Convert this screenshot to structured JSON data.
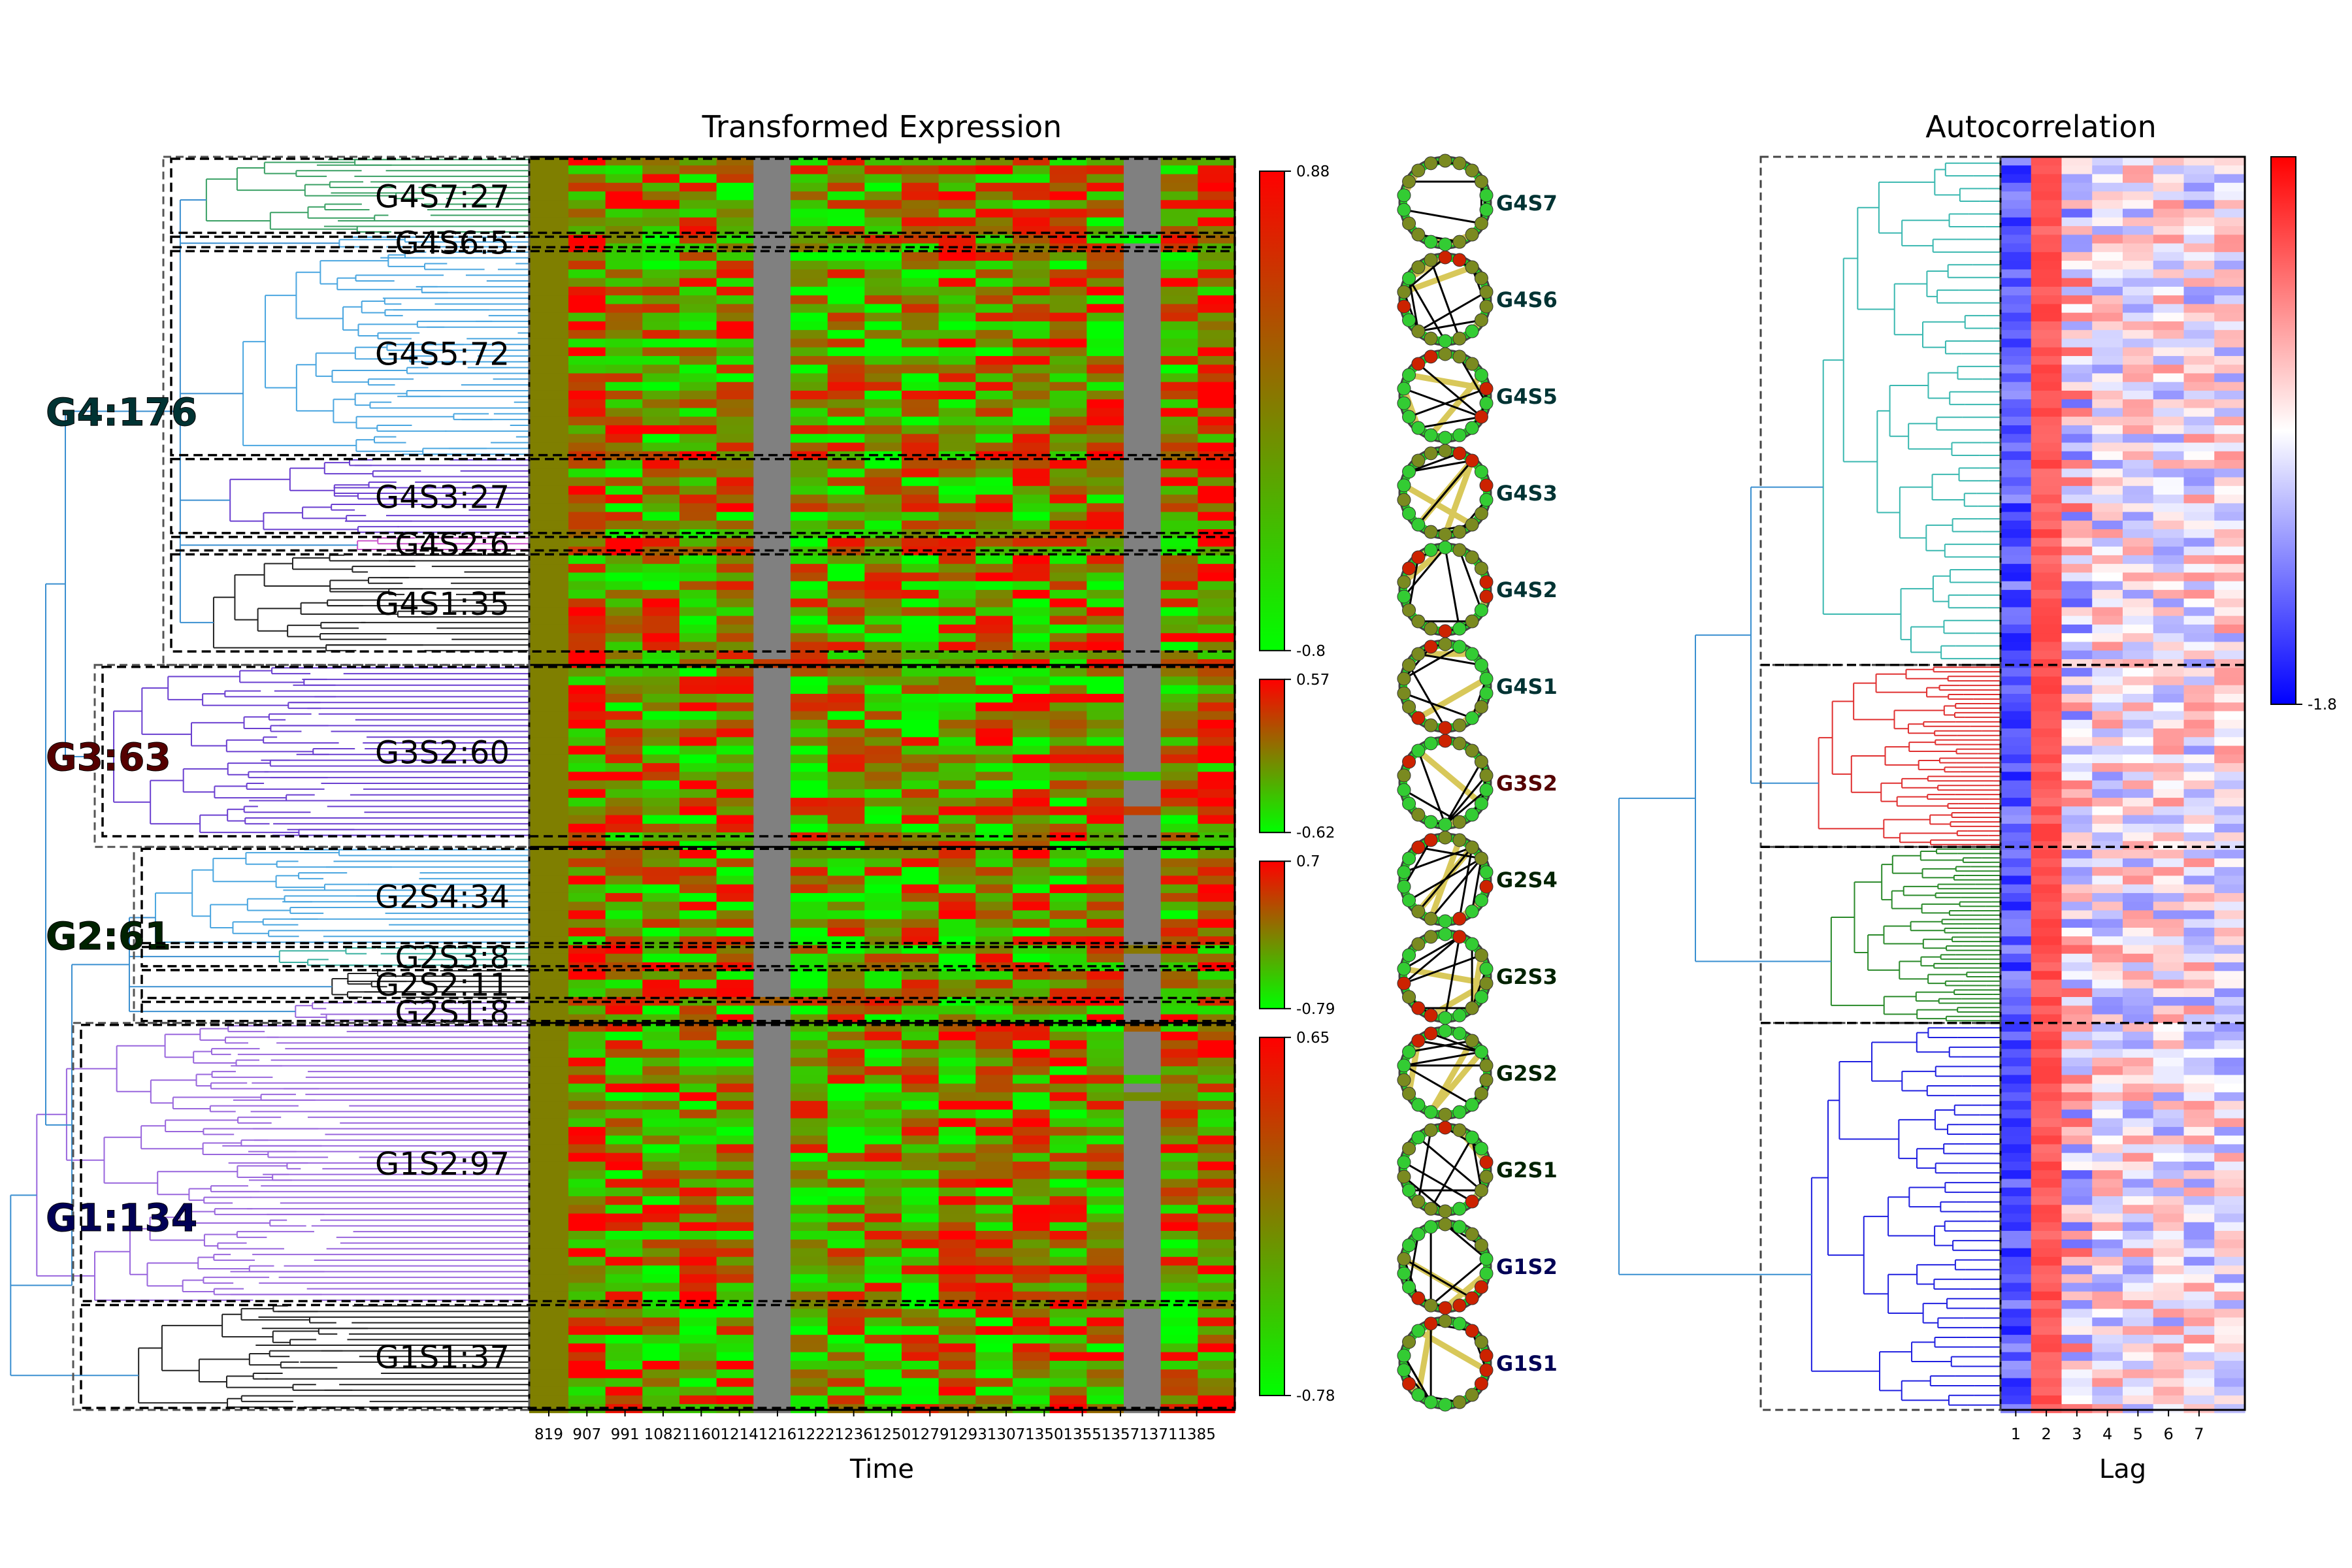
{
  "chart_data": [
    {
      "type": "heatmap",
      "title": "Transformed Expression",
      "xlabel": "Time",
      "x_tick_labels": [
        "819",
        "907",
        "991",
        "1082",
        "1160",
        "1214",
        "1216",
        "1222",
        "1236",
        "1250",
        "1279",
        "1293",
        "1307",
        "1350",
        "1355",
        "1357",
        "1371",
        "1385"
      ],
      "row_count": 434,
      "grid": false,
      "colormap": [
        "#00ff00",
        "#808000",
        "#ff0000"
      ],
      "groups": [
        {
          "label": "G4:176",
          "rows": 176,
          "color": "#003333",
          "subgroups": [
            {
              "label": "G4S7:27",
              "rows": 27
            },
            {
              "label": "G4S6:5",
              "rows": 5
            },
            {
              "label": "G4S5:72",
              "rows": 72
            },
            {
              "label": "G4S3:27",
              "rows": 27
            },
            {
              "label": "G4S2:6",
              "rows": 6
            },
            {
              "label": "G4S1:35",
              "rows": 35
            }
          ]
        },
        {
          "label": "G3:63",
          "rows": 63,
          "color": "#550000",
          "subgroups": [
            {
              "label": "G3S2:60",
              "rows": 60
            }
          ]
        },
        {
          "label": "G2:61",
          "rows": 61,
          "color": "#002200",
          "subgroups": [
            {
              "label": "G2S4:34",
              "rows": 34
            },
            {
              "label": "G2S3:8",
              "rows": 8
            },
            {
              "label": "G2S2:11",
              "rows": 11
            },
            {
              "label": "G2S1:8",
              "rows": 8
            }
          ]
        },
        {
          "label": "G1:134",
          "rows": 134,
          "color": "#000055",
          "subgroups": [
            {
              "label": "G1S2:97",
              "rows": 97
            },
            {
              "label": "G1S1:37",
              "rows": 37
            }
          ]
        }
      ],
      "colorbars": [
        {
          "group": "G4",
          "max": "0.88",
          "min": "-0.8"
        },
        {
          "group": "G3",
          "max": "0.57",
          "min": "-0.62"
        },
        {
          "group": "G2",
          "max": "0.7",
          "min": "-0.79"
        },
        {
          "group": "G1",
          "max": "0.65",
          "min": "-0.78"
        }
      ],
      "gray_columns": [
        "1214",
        "1357"
      ]
    },
    {
      "type": "heatmap",
      "title": "Autocorrelation",
      "xlabel": "Lag",
      "x_tick_labels": [
        "1",
        "2",
        "3",
        "4",
        "5",
        "6",
        "7"
      ],
      "colormap": [
        "#0000ff",
        "#ffffff",
        "#ff0000"
      ],
      "colorbar": {
        "min": "-1.8"
      },
      "grid": false
    }
  ],
  "subcluster_graphs": [
    {
      "label": "G4S7",
      "color": "#003333"
    },
    {
      "label": "G4S6",
      "color": "#003333"
    },
    {
      "label": "G4S5",
      "color": "#003333"
    },
    {
      "label": "G4S3",
      "color": "#003333"
    },
    {
      "label": "G4S2",
      "color": "#003333"
    },
    {
      "label": "G4S1",
      "color": "#003333"
    },
    {
      "label": "G3S2",
      "color": "#550000"
    },
    {
      "label": "G2S4",
      "color": "#002200"
    },
    {
      "label": "G2S3",
      "color": "#002200"
    },
    {
      "label": "G2S2",
      "color": "#002200"
    },
    {
      "label": "G2S1",
      "color": "#002200"
    },
    {
      "label": "G1S2",
      "color": "#000055"
    },
    {
      "label": "G1S1",
      "color": "#000055"
    }
  ]
}
